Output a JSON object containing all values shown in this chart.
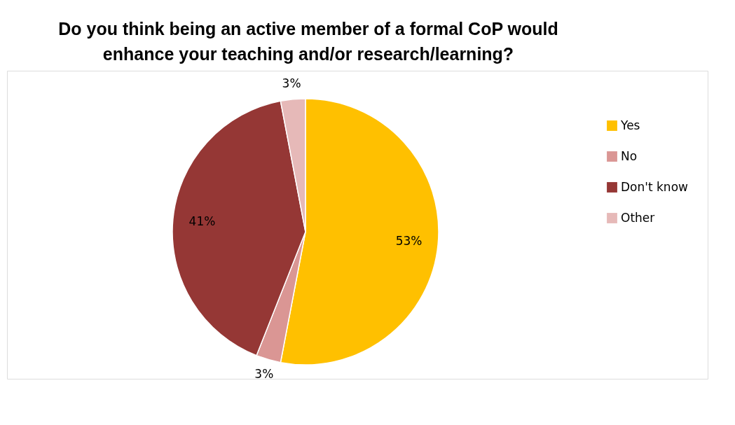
{
  "chart_data": {
    "type": "pie",
    "title": [
      "Do you think being an active member of a formal CoP would",
      "enhance your teaching and/or research/learning?"
    ],
    "categories": [
      "Yes",
      "No",
      "Don't know",
      "Other"
    ],
    "values": [
      53,
      3,
      41,
      3
    ],
    "colors": [
      "#ffc000",
      "#da9694",
      "#953735",
      "#e6b9b8"
    ],
    "value_labels": [
      "53%",
      "3%",
      "41%",
      "3%"
    ],
    "legend": "right"
  }
}
